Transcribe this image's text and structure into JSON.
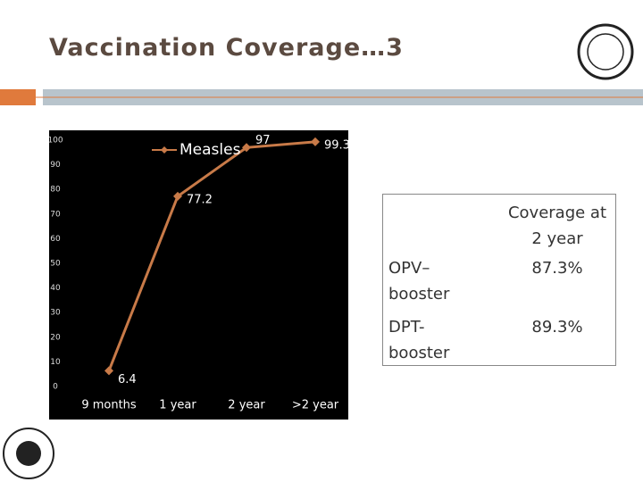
{
  "slide_title": "Vaccination Coverage…3",
  "chart_data": {
    "type": "line",
    "categories": [
      "9 months",
      "1 year",
      "2 year",
      ">2 year"
    ],
    "series": [
      {
        "name": "Measles",
        "color": "#c87a48",
        "values": [
          6.4,
          77.2,
          97,
          99.3
        ]
      }
    ],
    "ylim": [
      0,
      100
    ],
    "yticks": [
      0,
      10,
      20,
      30,
      40,
      50,
      60,
      70,
      80,
      90,
      100
    ],
    "legend": "top",
    "background": "#000000"
  },
  "table": {
    "header": [
      "",
      "Coverage at 2 year"
    ],
    "rows": [
      [
        "OPV– booster",
        "87.3%"
      ],
      [
        "DPT- booster",
        "89.3%"
      ]
    ]
  }
}
